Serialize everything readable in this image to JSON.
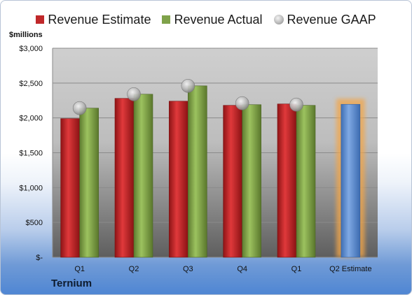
{
  "legend": {
    "items": [
      {
        "label": "Revenue Estimate",
        "color": "#c0282a",
        "icon": "square-swatch"
      },
      {
        "label": "Revenue Actual",
        "color": "#7fa24a",
        "icon": "square-swatch"
      },
      {
        "label": "Revenue GAAP",
        "color": "#b8b8b8",
        "icon": "circle-swatch"
      }
    ]
  },
  "unit_label": "$millions",
  "company": "Ternium",
  "colors": {
    "estimate": "#c0282a",
    "actual": "#7fa24a",
    "future_estimate": "#5b8fd6",
    "future_glow": "#f2a64a",
    "gaap_marker": "#b8b8b8",
    "plot_bg_top": "#c8c8c8",
    "plot_bg_bottom": "#6a6a6a"
  },
  "chart_data": {
    "type": "bar",
    "categories": [
      "Q1",
      "Q2",
      "Q3",
      "Q4",
      "Q1",
      "Q2 Estimate"
    ],
    "series": [
      {
        "name": "Revenue Estimate",
        "values": [
          1990,
          2280,
          2240,
          2180,
          2200,
          2195
        ]
      },
      {
        "name": "Revenue Actual",
        "values": [
          2140,
          2340,
          2460,
          2190,
          2180,
          null
        ]
      },
      {
        "name": "Revenue GAAP",
        "values": [
          2140,
          2340,
          2460,
          2210,
          2190,
          null
        ]
      }
    ],
    "ylim": [
      0,
      3000
    ],
    "y_ticks": [
      0,
      500,
      1000,
      1500,
      2000,
      2500,
      3000
    ],
    "y_tick_labels": [
      "$-",
      "$500",
      "$1,000",
      "$1,500",
      "$2,000",
      "$2,500",
      "$3,000"
    ],
    "grid": true,
    "legend_position": "top"
  }
}
